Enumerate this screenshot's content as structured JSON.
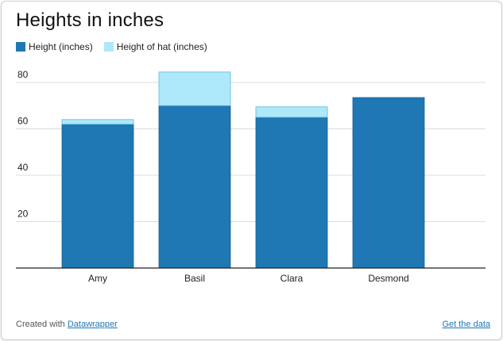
{
  "chart_data": {
    "type": "bar",
    "stacked": true,
    "title": "Heights in inches",
    "categories": [
      "Amy",
      "Basil",
      "Clara",
      "Desmond"
    ],
    "series": [
      {
        "name": "Height (inches)",
        "values": [
          62,
          70,
          65,
          73.5
        ],
        "color": "#1f77b4"
      },
      {
        "name": "Height of hat (inches)",
        "values": [
          2,
          14.5,
          4.5,
          0
        ],
        "color": "#aee8fb"
      }
    ],
    "ylim": [
      0,
      80
    ],
    "yticks": [
      "20",
      "40",
      "60",
      "80"
    ],
    "grid": true,
    "legend": "top-left"
  },
  "footer": {
    "credit_text": "Created with",
    "credit_link": "Datawrapper",
    "data_link": "Get the data"
  }
}
